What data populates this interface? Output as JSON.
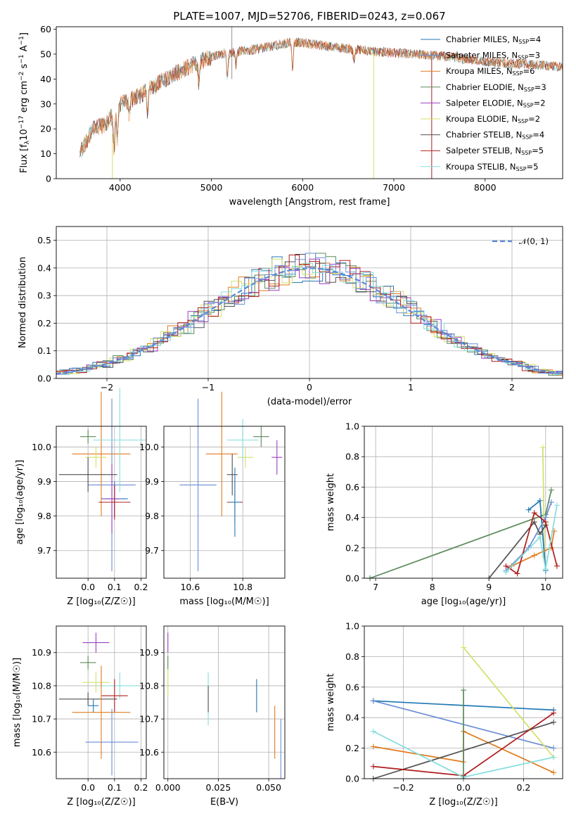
{
  "figure": {
    "title": "PLATE=1007, MJD=52706, FIBERID=0243, z=0.067"
  },
  "series": [
    {
      "name": "Chabrier MILES, N",
      "sub": "SSP",
      "tail": "=4",
      "color": "#1f77b4"
    },
    {
      "name": "Salpeter MILES, N",
      "sub": "SSP",
      "tail": "=3",
      "color": "#6b8ed6"
    },
    {
      "name": "Kroupa MILES, N",
      "sub": "SSP",
      "tail": "=6",
      "color": "#e07b1c"
    },
    {
      "name": "Chabrier ELODIE, N",
      "sub": "SSP",
      "tail": "=3",
      "color": "#5a8a5a"
    },
    {
      "name": "Salpeter ELODIE, N",
      "sub": "SSP",
      "tail": "=2",
      "color": "#9b3fc4"
    },
    {
      "name": "Kroupa ELODIE, N",
      "sub": "SSP",
      "tail": "=2",
      "color": "#d4e06a"
    },
    {
      "name": "Chabrier STELIB, N",
      "sub": "SSP",
      "tail": "=4",
      "color": "#505050"
    },
    {
      "name": "Salpeter STELIB, N",
      "sub": "SSP",
      "tail": "=5",
      "color": "#b01c1c"
    },
    {
      "name": "Kroupa STELIB, N",
      "sub": "SSP",
      "tail": "=5",
      "color": "#86dddd"
    }
  ],
  "chart_data": [
    {
      "type": "line",
      "id": "spectrum",
      "title": "PLATE=1007, MJD=52706, FIBERID=0243, z=0.067",
      "xlabel": "wavelength [Angstrom, rest frame]",
      "ylabel_parts": [
        "Flux [f",
        "λ",
        "10",
        "−17",
        " erg cm",
        "−2",
        " s",
        "−1",
        " A",
        "−1",
        "]"
      ],
      "xlim": [
        3300,
        8850
      ],
      "ylim": [
        0,
        61
      ],
      "xticks": [
        4000,
        5000,
        6000,
        7000,
        8000
      ],
      "yticks": [
        0,
        10,
        20,
        30,
        40,
        50,
        60
      ],
      "continuum": [
        [
          3560,
          10
        ],
        [
          3700,
          20
        ],
        [
          3850,
          22
        ],
        [
          4000,
          30
        ],
        [
          4200,
          33
        ],
        [
          4500,
          40
        ],
        [
          4800,
          46
        ],
        [
          5100,
          50
        ],
        [
          5500,
          52
        ],
        [
          5900,
          55
        ],
        [
          6300,
          53
        ],
        [
          6800,
          51
        ],
        [
          7200,
          50
        ],
        [
          7600,
          49
        ],
        [
          8000,
          47
        ],
        [
          8400,
          46
        ],
        [
          8850,
          45
        ]
      ]
    },
    {
      "type": "area",
      "id": "residual-histogram",
      "xlabel": "(data-model)/error",
      "ylabel": "Normed distribution",
      "xlim": [
        -2.5,
        2.5
      ],
      "ylim": [
        0,
        0.55
      ],
      "xticks": [
        -2,
        -1,
        0,
        1,
        2
      ],
      "xticklabels": [
        "−2",
        "−1",
        "0",
        "1",
        "2"
      ],
      "yticks": [
        0.0,
        0.1,
        0.2,
        0.3,
        0.4,
        0.5
      ],
      "yticklabels": [
        "0.0",
        "0.1",
        "0.2",
        "0.3",
        "0.4",
        "0.5"
      ],
      "reference": {
        "name": "𝒩(0, 1)",
        "mu": 0,
        "sigma": 1
      }
    },
    {
      "type": "scatter",
      "id": "age-vs-metallicity",
      "xlabel": "Z [log₁₀(Z/Z☉)]",
      "ylabel": "age  [log₁₀(age/yr)]",
      "xlim": [
        -0.12,
        0.22
      ],
      "ylim": [
        9.62,
        10.06
      ],
      "xticks": [
        0.0,
        0.1,
        0.2
      ],
      "xticklabels": [
        "0.0",
        "0.1",
        "0.2"
      ],
      "yticks": [
        9.7,
        9.8,
        9.9,
        10.0
      ],
      "yticklabels": [
        "9.7",
        "9.8",
        "9.9",
        "10.0"
      ],
      "points": [
        {
          "series": 0,
          "x": 0.1,
          "y": 9.85,
          "xerr": 0.05,
          "yerr": 0.05
        },
        {
          "series": 1,
          "x": 0.09,
          "y": 9.89,
          "xerr": 0.09,
          "yerr": 0.25
        },
        {
          "series": 2,
          "x": 0.05,
          "y": 9.98,
          "xerr": 0.11,
          "yerr": 0.18
        },
        {
          "series": 3,
          "x": 0.0,
          "y": 10.03,
          "xerr": 0.03,
          "yerr": 0.02
        },
        {
          "series": 4,
          "x": 0.09,
          "y": 9.85,
          "xerr": 0.03,
          "yerr": 0.1
        },
        {
          "series": 5,
          "x": 0.03,
          "y": 9.97,
          "xerr": 0.04,
          "yerr": 0.03
        },
        {
          "series": 6,
          "x": 0.0,
          "y": 9.92,
          "xerr": 0.11,
          "yerr": 0.05
        },
        {
          "series": 7,
          "x": 0.1,
          "y": 9.84,
          "xerr": 0.06,
          "yerr": 0.05
        },
        {
          "series": 8,
          "x": 0.12,
          "y": 10.02,
          "xerr": 0.1,
          "yerr": 0.15
        }
      ]
    },
    {
      "type": "scatter",
      "id": "age-vs-mass",
      "xlabel": "mass [log₁₀(M/M☉)]",
      "xlim": [
        10.5,
        10.96
      ],
      "ylim": [
        9.62,
        10.06
      ],
      "xticks": [
        10.6,
        10.8
      ],
      "xticklabels": [
        "10.6",
        "10.8"
      ],
      "yticks": [
        9.7,
        9.8,
        9.9,
        10.0
      ],
      "yticklabels": [
        "9.7",
        "9.8",
        "9.9",
        "10.0"
      ],
      "points": [
        {
          "series": 1,
          "x": 10.63,
          "y": 9.89,
          "xerr": 0.07,
          "yerr": 0.25
        },
        {
          "series": 2,
          "x": 10.72,
          "y": 9.98,
          "xerr": 0.06,
          "yerr": 0.18
        },
        {
          "series": 3,
          "x": 10.87,
          "y": 10.03,
          "xerr": 0.03,
          "yerr": 0.03
        },
        {
          "series": 4,
          "x": 10.93,
          "y": 9.97,
          "xerr": 0.02,
          "yerr": 0.05
        },
        {
          "series": 5,
          "x": 10.81,
          "y": 9.97,
          "xerr": 0.03,
          "yerr": 0.03
        },
        {
          "series": 6,
          "x": 10.76,
          "y": 9.92,
          "xerr": 0.02,
          "yerr": 0.06
        },
        {
          "series": 7,
          "x": 10.77,
          "y": 9.84,
          "xerr": 0.03,
          "yerr": 0.06
        },
        {
          "series": 8,
          "x": 10.8,
          "y": 10.02,
          "xerr": 0.06,
          "yerr": 0.06
        },
        {
          "series": 0,
          "x": 10.77,
          "y": 9.84,
          "xerr": 0.02,
          "yerr": 0.1
        }
      ]
    },
    {
      "type": "line",
      "id": "mass-weight-vs-age",
      "xlabel": "age  [log₁₀(age/yr)]",
      "ylabel": "mass weight",
      "xlim": [
        6.8,
        10.3
      ],
      "ylim": [
        0,
        1
      ],
      "xticks": [
        7,
        8,
        9,
        10
      ],
      "xticklabels": [
        "7",
        "8",
        "9",
        "10"
      ],
      "yticks": [
        0,
        0.2,
        0.4,
        0.6,
        0.8,
        1.0
      ],
      "yticklabels": [
        "0.0",
        "0.2",
        "0.4",
        "0.6",
        "0.8",
        "1.0"
      ],
      "lines": [
        {
          "series": 3,
          "x": [
            6.9,
            10.0,
            10.1
          ],
          "y": [
            0.0,
            0.42,
            0.58
          ]
        },
        {
          "series": 5,
          "x": [
            9.95,
            9.98
          ],
          "y": [
            0.86,
            0.14
          ]
        },
        {
          "series": 0,
          "x": [
            9.7,
            9.9,
            10.0
          ],
          "y": [
            0.45,
            0.51,
            0.05
          ]
        },
        {
          "series": 1,
          "x": [
            9.3,
            9.7,
            10.0,
            10.1
          ],
          "y": [
            0.05,
            0.2,
            0.4,
            0.5
          ]
        },
        {
          "series": 2,
          "x": [
            9.4,
            9.8,
            10.1,
            10.15
          ],
          "y": [
            0.08,
            0.15,
            0.2,
            0.31
          ]
        },
        {
          "series": 6,
          "x": [
            9.0,
            9.8,
            9.9,
            10.0
          ],
          "y": [
            0.0,
            0.37,
            0.29,
            0.35
          ]
        },
        {
          "series": 7,
          "x": [
            9.3,
            9.5,
            9.8,
            10.0,
            10.2
          ],
          "y": [
            0.08,
            0.03,
            0.43,
            0.37,
            0.08
          ]
        },
        {
          "series": 8,
          "x": [
            9.3,
            9.9,
            10.0,
            10.2
          ],
          "y": [
            0.04,
            0.27,
            0.06,
            0.48
          ]
        }
      ]
    },
    {
      "type": "scatter",
      "id": "mass-vs-metallicity",
      "xlabel": "Z [log₁₀(Z/Z☉)]",
      "ylabel": "mass [log₁₀(M/M☉)]",
      "xlim": [
        -0.12,
        0.22
      ],
      "ylim": [
        10.52,
        10.98
      ],
      "xticks": [
        0.0,
        0.1,
        0.2
      ],
      "xticklabels": [
        "0.0",
        "0.1",
        "0.2"
      ],
      "yticks": [
        10.6,
        10.7,
        10.8,
        10.9
      ],
      "yticklabels": [
        "10.6",
        "10.7",
        "10.8",
        "10.9"
      ],
      "points": [
        {
          "series": 4,
          "x": 0.03,
          "y": 10.93,
          "xerr": 0.05,
          "yerr": 0.03
        },
        {
          "series": 3,
          "x": 0.0,
          "y": 10.87,
          "xerr": 0.03,
          "yerr": 0.02
        },
        {
          "series": 5,
          "x": 0.03,
          "y": 10.81,
          "xerr": 0.05,
          "yerr": 0.03
        },
        {
          "series": 8,
          "x": 0.12,
          "y": 10.8,
          "xerr": 0.07,
          "yerr": 0.04
        },
        {
          "series": 6,
          "x": 0.0,
          "y": 10.76,
          "xerr": 0.11,
          "yerr": 0.02
        },
        {
          "series": 7,
          "x": 0.1,
          "y": 10.77,
          "xerr": 0.05,
          "yerr": 0.05
        },
        {
          "series": 2,
          "x": 0.05,
          "y": 10.72,
          "xerr": 0.11,
          "yerr": 0.14
        },
        {
          "series": 1,
          "x": 0.09,
          "y": 10.63,
          "xerr": 0.1,
          "yerr": 0.1
        },
        {
          "series": 0,
          "x": 0.02,
          "y": 10.74,
          "xerr": 0.02,
          "yerr": 0.02
        }
      ]
    },
    {
      "type": "scatter",
      "id": "mass-vs-extinction",
      "xlabel": "E(B-V)",
      "xlim": [
        -0.002,
        0.058
      ],
      "ylim": [
        10.52,
        10.98
      ],
      "xticks": [
        0.0,
        0.025,
        0.05
      ],
      "xticklabels": [
        "0.000",
        "0.025",
        "0.050"
      ],
      "yticks": [
        10.6,
        10.7,
        10.8,
        10.9
      ],
      "yticklabels": [
        "10.6",
        "10.7",
        "10.8",
        "10.9"
      ],
      "points": [
        {
          "series": 4,
          "x": 0.0,
          "y": 10.93,
          "xerr": 0,
          "yerr": 0.03
        },
        {
          "series": 3,
          "x": 0.0,
          "y": 10.87,
          "xerr": 0,
          "yerr": 0.02
        },
        {
          "series": 5,
          "x": 0.0,
          "y": 10.81,
          "xerr": 0,
          "yerr": 0.04
        },
        {
          "series": 8,
          "x": 0.02,
          "y": 10.76,
          "xerr": 0,
          "yerr": 0.08
        },
        {
          "series": 6,
          "x": 0.02,
          "y": 10.76,
          "xerr": 0,
          "yerr": 0.04
        },
        {
          "series": 0,
          "x": 0.044,
          "y": 10.77,
          "xerr": 0,
          "yerr": 0.05
        },
        {
          "series": 2,
          "x": 0.053,
          "y": 10.66,
          "xerr": 0,
          "yerr": 0.08
        },
        {
          "series": 1,
          "x": 0.056,
          "y": 10.61,
          "xerr": 0,
          "yerr": 0.09
        }
      ]
    },
    {
      "type": "line",
      "id": "mass-weight-vs-metallicity",
      "xlabel": "Z [log₁₀(Z/Z☉)]",
      "ylabel": "mass weight",
      "xlim": [
        -0.33,
        0.33
      ],
      "ylim": [
        0,
        1
      ],
      "xticks": [
        -0.2,
        0.0,
        0.2
      ],
      "xticklabels": [
        "−0.2",
        "0.0",
        "0.2"
      ],
      "yticks": [
        0,
        0.2,
        0.4,
        0.6,
        0.8,
        1.0
      ],
      "yticklabels": [
        "0.0",
        "0.2",
        "0.4",
        "0.6",
        "0.8",
        "1.0"
      ],
      "lines": [
        {
          "series": 0,
          "x": [
            -0.3,
            0.3
          ],
          "y": [
            0.51,
            0.45
          ]
        },
        {
          "series": 1,
          "x": [
            -0.3,
            0.3
          ],
          "y": [
            0.51,
            0.2
          ]
        },
        {
          "series": 5,
          "x": [
            0.0,
            0.3
          ],
          "y": [
            0.86,
            0.14
          ]
        },
        {
          "series": 2,
          "x": [
            -0.3,
            0.0,
            0.0,
            0.3
          ],
          "y": [
            0.21,
            0.11,
            0.31,
            0.04
          ]
        },
        {
          "series": 6,
          "x": [
            -0.3,
            0.3
          ],
          "y": [
            0.0,
            0.37
          ]
        },
        {
          "series": 7,
          "x": [
            -0.3,
            0.0,
            0.3
          ],
          "y": [
            0.08,
            0.02,
            0.43
          ]
        },
        {
          "series": 8,
          "x": [
            -0.3,
            0.0,
            0.3
          ],
          "y": [
            0.31,
            0.01,
            0.14
          ]
        },
        {
          "series": 3,
          "x": [
            0.0,
            0.0
          ],
          "y": [
            0.0,
            0.58
          ]
        }
      ]
    }
  ]
}
